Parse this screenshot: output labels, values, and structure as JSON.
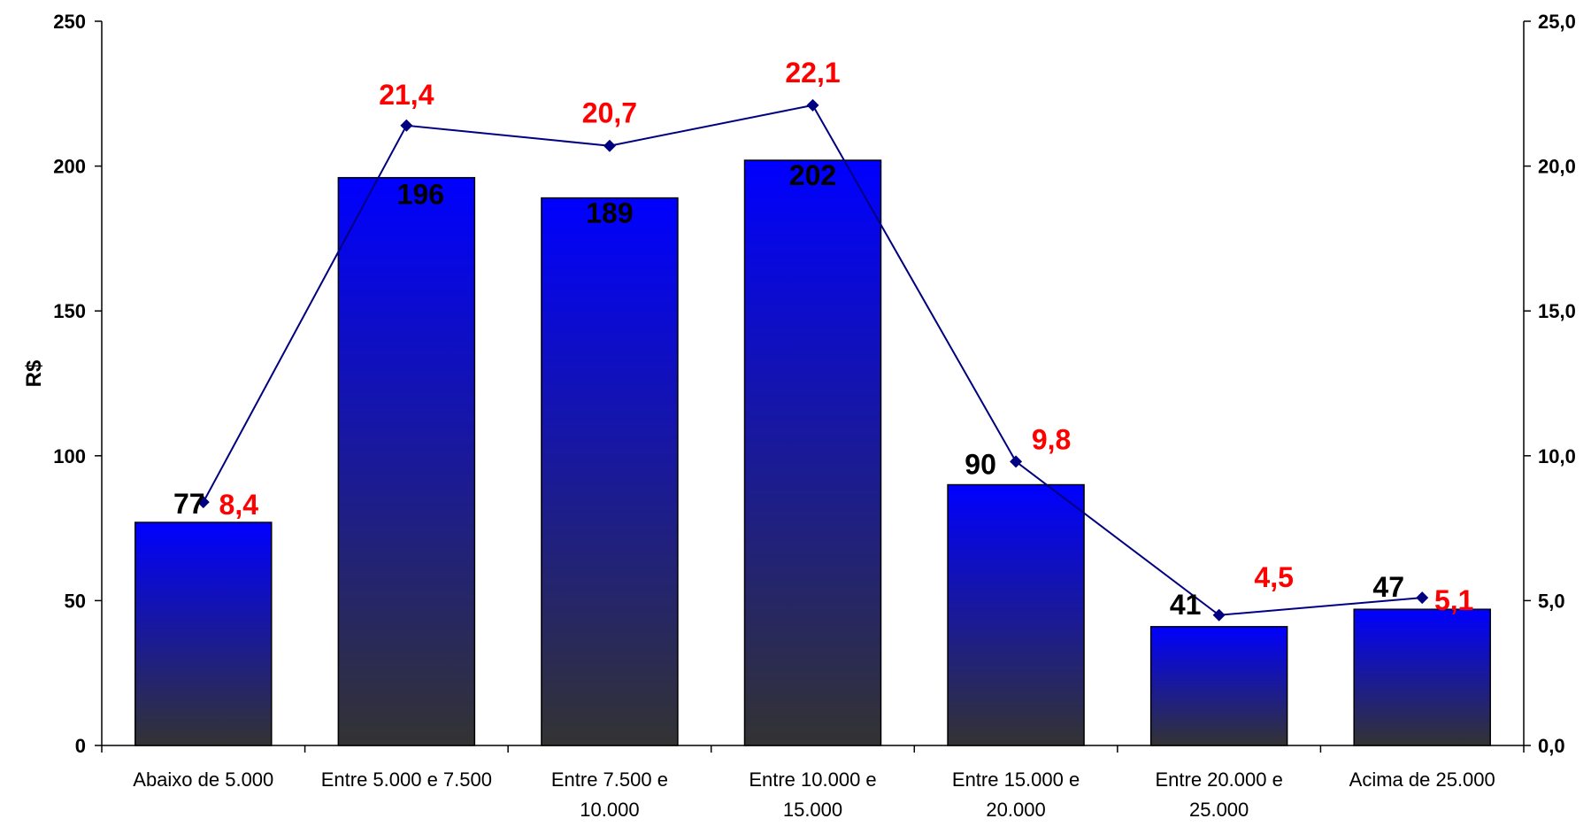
{
  "chart_data": {
    "type": "bar",
    "title": "",
    "ylabel": "R$",
    "y2label": "",
    "ylim": [
      0,
      250
    ],
    "y2lim": [
      0,
      25
    ],
    "yticks": [
      "0",
      "50",
      "100",
      "150",
      "200",
      "250"
    ],
    "y2ticks": [
      "0,0",
      "5,0",
      "10,0",
      "15,0",
      "20,0",
      "25,0"
    ],
    "categories": [
      [
        "Abaixo de 5.000"
      ],
      [
        "Entre 5.000 e 7.500"
      ],
      [
        "Entre 7.500 e",
        "10.000"
      ],
      [
        "Entre 10.000 e",
        "15.000"
      ],
      [
        "Entre 15.000 e",
        "20.000"
      ],
      [
        "Entre 20.000 e",
        "25.000"
      ],
      [
        "Acima de 25.000"
      ]
    ],
    "series": [
      {
        "type": "bar",
        "axis": "left",
        "values": [
          77,
          196,
          189,
          202,
          90,
          41,
          47
        ],
        "labels": [
          "77",
          "196",
          "189",
          "202",
          "90",
          "41",
          "47"
        ]
      },
      {
        "type": "line",
        "axis": "right",
        "values": [
          8.4,
          21.4,
          20.7,
          22.1,
          9.8,
          4.5,
          5.1
        ],
        "labels": [
          "8,4",
          "21,4",
          "20,7",
          "22,1",
          "9,8",
          "4,5",
          "5,1"
        ]
      }
    ],
    "colors": {
      "bar_top": "#0000ff",
      "bar_bottom": "#333333",
      "line": "#000080",
      "line_label": "#ff0000",
      "bar_label": "#000000"
    },
    "grid": false,
    "legend": "none"
  }
}
